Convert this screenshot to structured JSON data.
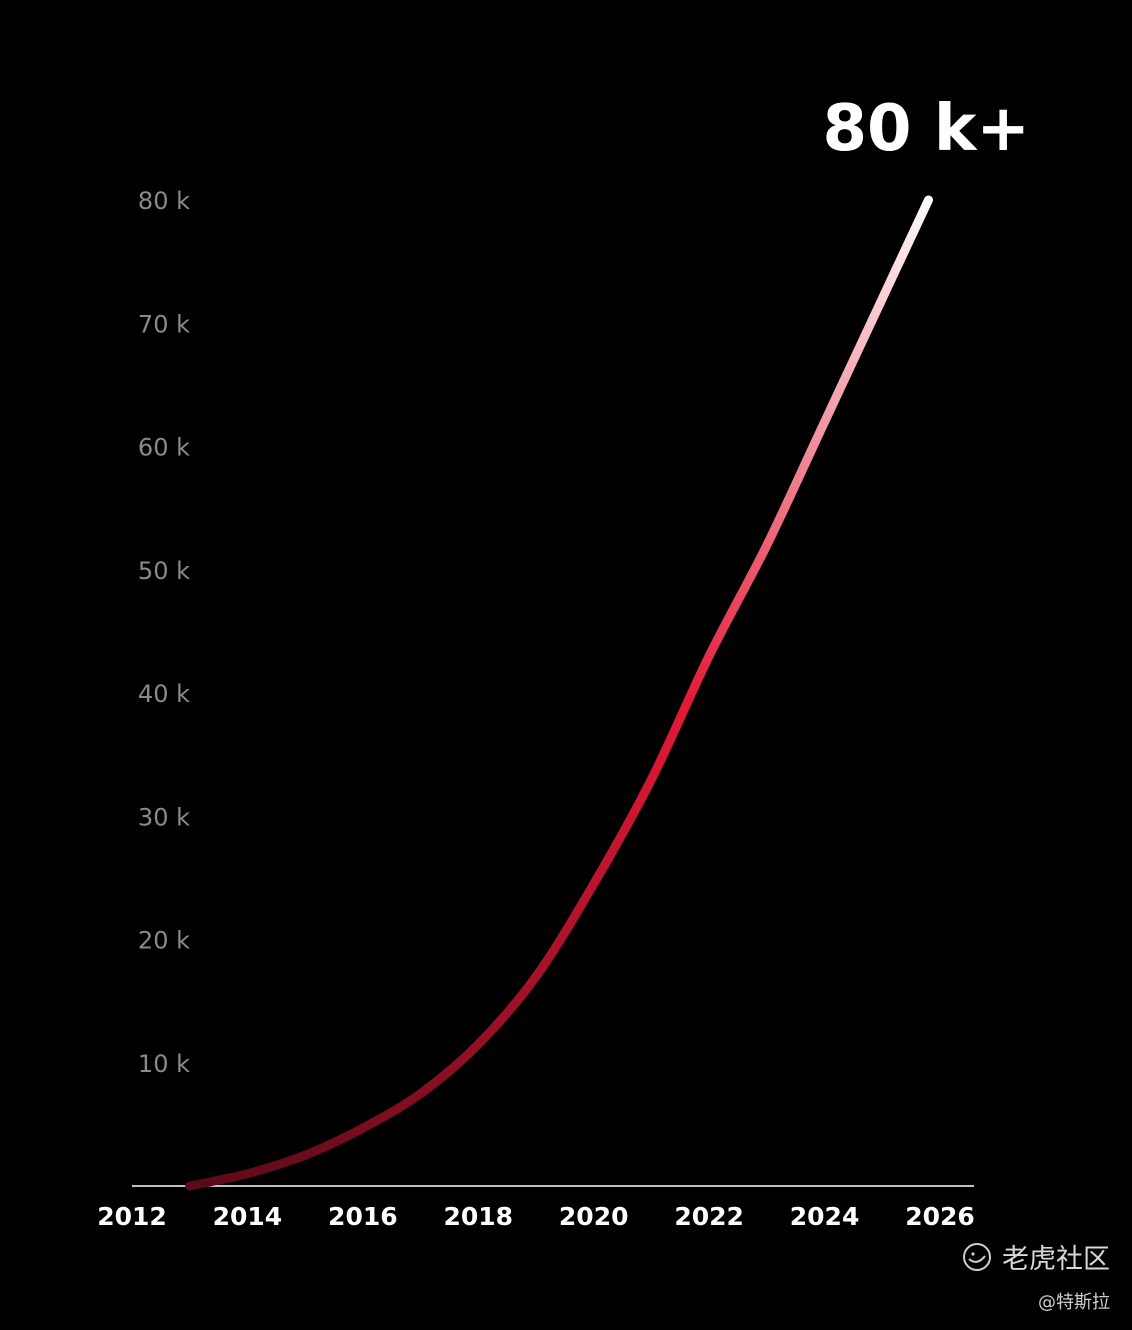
{
  "chart_data": {
    "type": "line",
    "title": "",
    "xlabel": "",
    "ylabel": "",
    "x": [
      2013,
      2014,
      2015,
      2016,
      2017,
      2018,
      2019,
      2020,
      2021,
      2022,
      2023,
      2024,
      2025,
      2025.8
    ],
    "y": [
      0,
      1000,
      2500,
      4700,
      7500,
      11500,
      17000,
      24500,
      33000,
      43000,
      52000,
      62000,
      72000,
      80000
    ],
    "x_ticks": [
      "2012",
      "2014",
      "2016",
      "2018",
      "2020",
      "2022",
      "2024",
      "2026"
    ],
    "y_ticks": [
      "10 k",
      "20 k",
      "30 k",
      "40 k",
      "50 k",
      "60 k",
      "70 k",
      "80 k"
    ],
    "xlim": [
      2012,
      2026
    ],
    "ylim": [
      0,
      80000
    ],
    "grid": false,
    "annotation": "80 k+",
    "colors": {
      "background": "#000000",
      "line_start": "#5a0a18",
      "line_mid": "#e31937",
      "line_end": "#ffffff",
      "axis": "#ffffff",
      "y_tick_text": "#8a8a8a"
    }
  },
  "watermark": {
    "icon": "tiger-logo-icon",
    "brand": "老虎社区",
    "author": "@特斯拉"
  }
}
